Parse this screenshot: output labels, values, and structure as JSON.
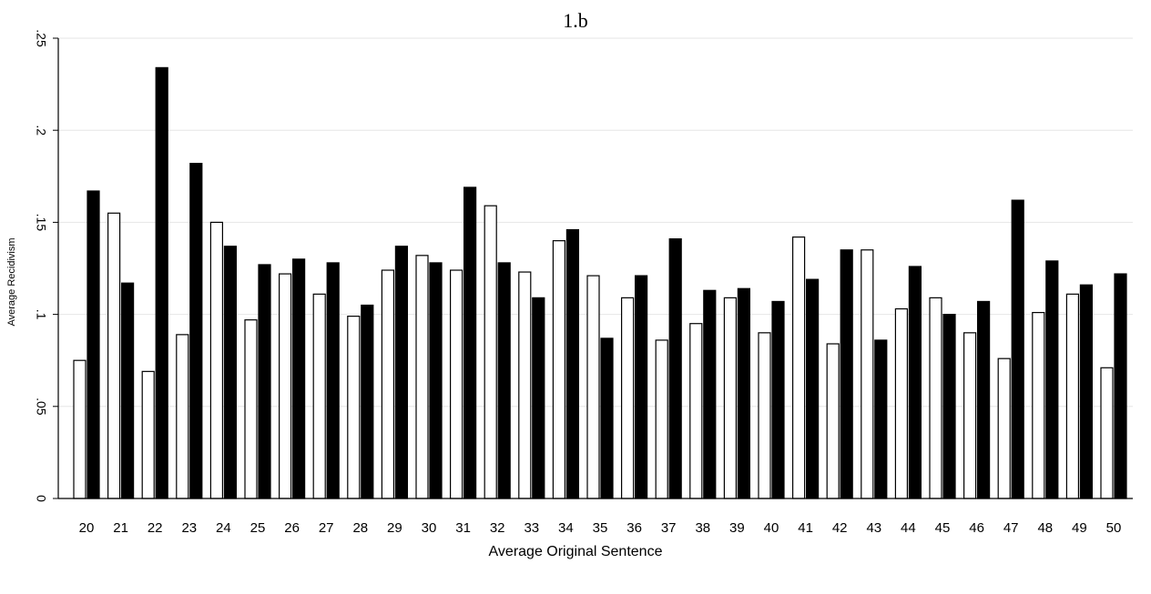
{
  "chart_data": {
    "type": "bar",
    "title": "1.b",
    "xlabel": "Average Original Sentence",
    "ylabel": "Average Recidivism",
    "ylim": [
      0,
      0.25
    ],
    "yticks": [
      0,
      0.05,
      0.1,
      0.15,
      0.2,
      0.25
    ],
    "ytick_labels": [
      "0",
      ".05",
      ".1",
      ".15",
      ".2",
      ".25"
    ],
    "grid": true,
    "categories": [
      "20",
      "21",
      "22",
      "23",
      "24",
      "25",
      "26",
      "27",
      "28",
      "29",
      "30",
      "31",
      "32",
      "33",
      "34",
      "35",
      "36",
      "37",
      "38",
      "39",
      "40",
      "41",
      "42",
      "43",
      "44",
      "45",
      "46",
      "47",
      "48",
      "49",
      "50"
    ],
    "series": [
      {
        "color": "#ffffff",
        "values": [
          0.075,
          0.155,
          0.069,
          0.089,
          0.15,
          0.097,
          0.122,
          0.111,
          0.099,
          0.124,
          0.132,
          0.124,
          0.159,
          0.123,
          0.14,
          0.121,
          0.109,
          0.086,
          0.095,
          0.109,
          0.09,
          0.142,
          0.084,
          0.135,
          0.103,
          0.109,
          0.09,
          0.076,
          0.101,
          0.111,
          0.071
        ]
      },
      {
        "color": "#000000",
        "values": [
          0.167,
          0.117,
          0.234,
          0.182,
          0.137,
          0.127,
          0.13,
          0.128,
          0.105,
          0.137,
          0.128,
          0.169,
          0.128,
          0.109,
          0.146,
          0.087,
          0.121,
          0.141,
          0.113,
          0.114,
          0.107,
          0.119,
          0.135,
          0.086,
          0.126,
          0.1,
          0.107,
          0.162,
          0.129,
          0.116,
          0.122
        ]
      }
    ]
  }
}
